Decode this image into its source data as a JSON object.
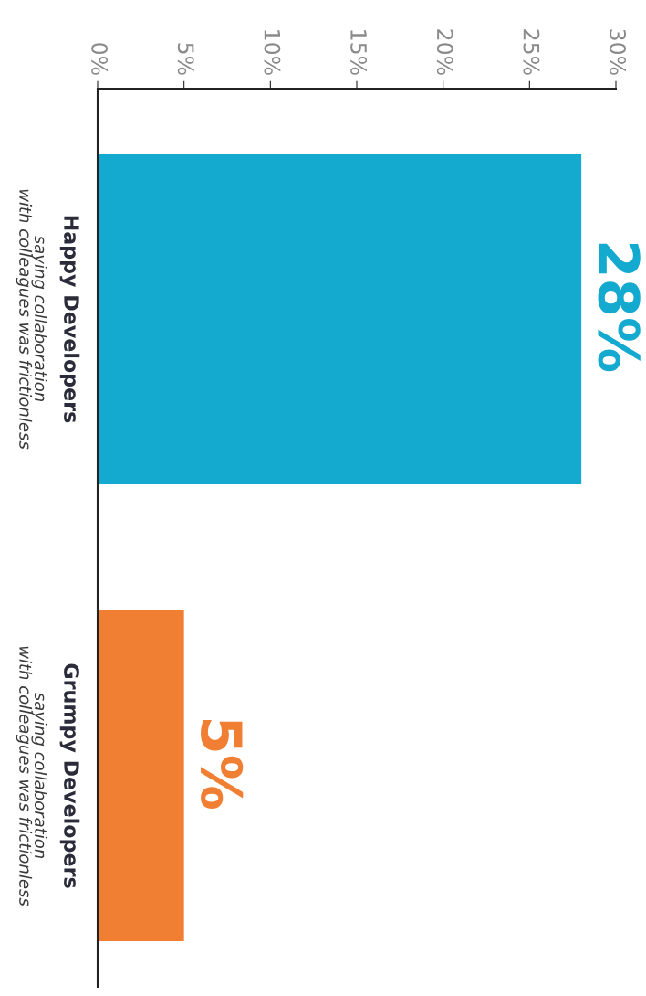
{
  "chart_data": {
    "type": "bar",
    "orientation": "horizontal",
    "categories": [
      "Happy Developers\nsaying collaboration\nwith colleagues was frictionless",
      "Grumpy Developers\nsaying collaboration\nwith colleagues was frictionless"
    ],
    "values": [
      28,
      5
    ],
    "colors": [
      "#14a9cf",
      "#f07f34"
    ],
    "value_labels": [
      "28%",
      "5%"
    ],
    "xlim": [
      0,
      30
    ],
    "xticks": [
      {
        "value": 0,
        "label": "0%"
      },
      {
        "value": 5,
        "label": "5%"
      },
      {
        "value": 10,
        "label": "10%"
      },
      {
        "value": 15,
        "label": "15%"
      },
      {
        "value": 20,
        "label": "20%"
      },
      {
        "value": 25,
        "label": "25%"
      },
      {
        "value": 30,
        "label": "30%"
      }
    ],
    "grid": false,
    "legend": false
  }
}
